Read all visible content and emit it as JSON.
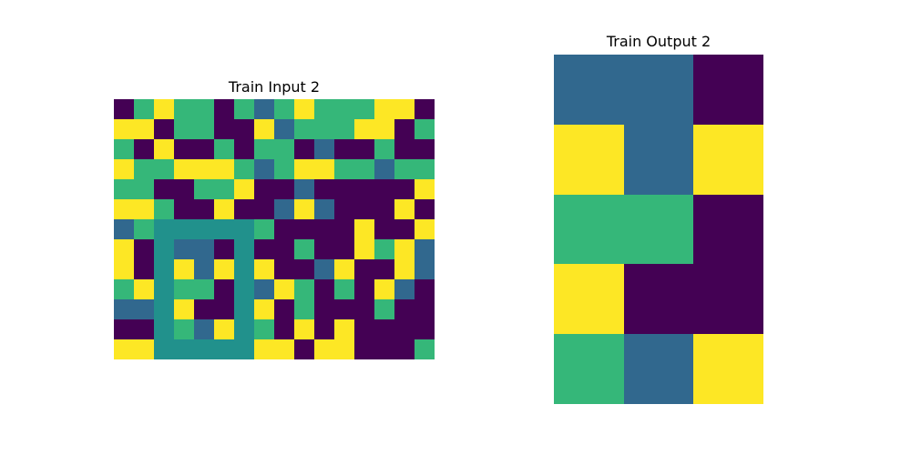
{
  "palette": {
    "0": "#440154",
    "1": "#31688e",
    "2": "#35b779",
    "3": "#fde725",
    "4": "#21918c"
  },
  "input": {
    "title": "Train Input 2",
    "grid": [
      [
        0,
        2,
        3,
        2,
        2,
        0,
        2,
        1,
        2,
        3,
        2,
        2,
        2,
        3,
        3,
        0
      ],
      [
        3,
        3,
        0,
        2,
        2,
        0,
        0,
        3,
        1,
        2,
        2,
        2,
        3,
        3,
        0,
        2
      ],
      [
        2,
        0,
        3,
        0,
        0,
        2,
        0,
        2,
        2,
        0,
        1,
        0,
        0,
        2,
        0,
        0
      ],
      [
        3,
        2,
        2,
        3,
        3,
        3,
        2,
        1,
        2,
        3,
        3,
        2,
        2,
        1,
        2,
        2
      ],
      [
        2,
        2,
        0,
        0,
        2,
        2,
        3,
        0,
        0,
        1,
        0,
        0,
        0,
        0,
        0,
        3
      ],
      [
        3,
        3,
        2,
        0,
        0,
        3,
        0,
        0,
        1,
        3,
        1,
        0,
        0,
        0,
        3,
        0
      ],
      [
        1,
        2,
        4,
        4,
        4,
        4,
        4,
        2,
        0,
        0,
        0,
        0,
        3,
        0,
        0,
        3
      ],
      [
        3,
        0,
        4,
        1,
        1,
        0,
        4,
        0,
        0,
        2,
        0,
        0,
        3,
        2,
        3,
        1
      ],
      [
        3,
        0,
        4,
        3,
        1,
        3,
        4,
        3,
        0,
        0,
        1,
        3,
        0,
        0,
        3,
        1
      ],
      [
        2,
        3,
        4,
        2,
        2,
        0,
        4,
        1,
        3,
        2,
        0,
        2,
        0,
        3,
        1,
        0
      ],
      [
        1,
        1,
        4,
        3,
        0,
        0,
        4,
        3,
        0,
        2,
        0,
        0,
        0,
        2,
        0,
        0
      ],
      [
        0,
        0,
        4,
        2,
        1,
        3,
        4,
        2,
        0,
        3,
        0,
        3,
        0,
        0,
        0,
        0
      ],
      [
        3,
        3,
        4,
        4,
        4,
        4,
        4,
        3,
        3,
        0,
        3,
        3,
        0,
        0,
        0,
        2
      ]
    ]
  },
  "output": {
    "title": "Train Output 2",
    "grid": [
      [
        1,
        1,
        0
      ],
      [
        3,
        1,
        3
      ],
      [
        2,
        2,
        0
      ],
      [
        3,
        0,
        0
      ],
      [
        2,
        1,
        3
      ]
    ]
  }
}
